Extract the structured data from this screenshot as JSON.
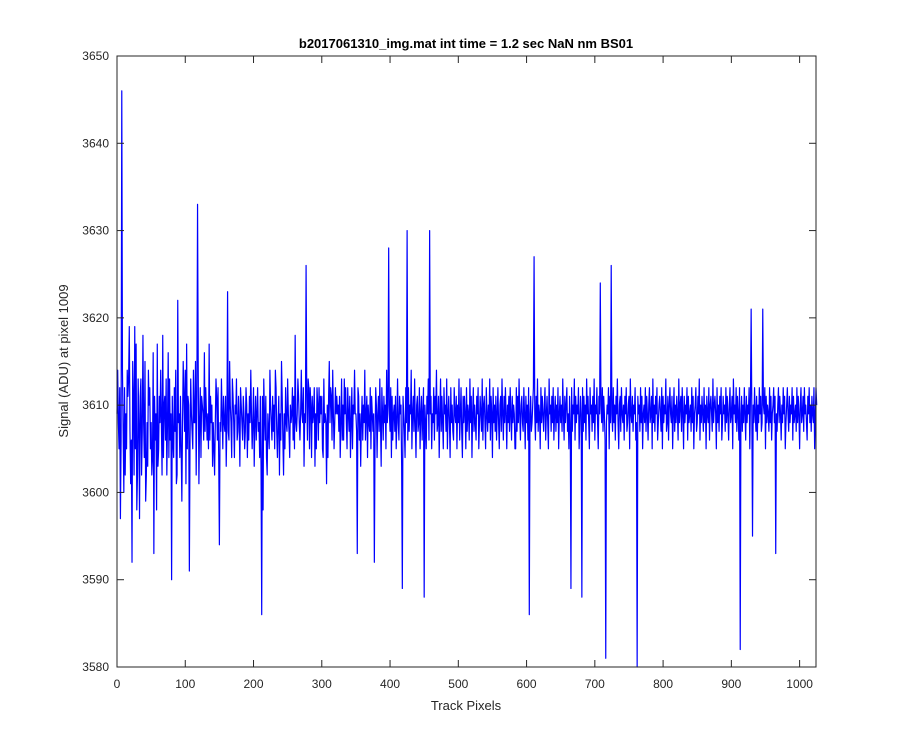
{
  "chart_data": {
    "type": "line",
    "title": "b2017061310_img.mat int time = 1.2 sec  NaN nm BS01",
    "xlabel": "Track Pixels",
    "ylabel": "Signal (ADU) at pixel 1009",
    "xlim": [
      0,
      1024
    ],
    "ylim": [
      3580,
      3650
    ],
    "xticks": [
      0,
      100,
      200,
      300,
      400,
      500,
      600,
      700,
      800,
      900,
      1000
    ],
    "yticks": [
      3580,
      3590,
      3600,
      3610,
      3620,
      3630,
      3640,
      3650
    ],
    "grid": false,
    "legend": "none",
    "series_color": "#0000ff",
    "features": {
      "spikes": [
        [
          5,
          3597
        ],
        [
          7,
          3646
        ],
        [
          10,
          3600
        ],
        [
          22,
          3592
        ],
        [
          80,
          3590
        ],
        [
          118,
          3633
        ],
        [
          150,
          3594
        ],
        [
          163,
          3623
        ],
        [
          215,
          3586
        ],
        [
          278,
          3626
        ],
        [
          368,
          3593
        ],
        [
          389,
          3592
        ],
        [
          410,
          3628
        ],
        [
          430,
          3589
        ],
        [
          436,
          3630
        ],
        [
          466,
          3588
        ],
        [
          474,
          3630
        ],
        [
          594,
          3605
        ],
        [
          610,
          3586
        ],
        [
          618,
          3627
        ],
        [
          675,
          3589
        ],
        [
          690,
          3588
        ],
        [
          720,
          3624
        ],
        [
          728,
          3581
        ],
        [
          735,
          3626
        ],
        [
          772,
          3580
        ],
        [
          850,
          3595
        ],
        [
          902,
          3582
        ],
        [
          920,
          3621
        ],
        [
          925,
          3595
        ],
        [
          940,
          3621
        ],
        [
          965,
          3593
        ],
        [
          1010,
          3612
        ]
      ],
      "range": [
        3580,
        3646
      ]
    },
    "series": [
      {
        "x_start": 0,
        "x_step": 1,
        "values": [
          3609,
          3614,
          3608,
          3605,
          3612,
          3597,
          3606,
          3646,
          3614,
          3607,
          3600,
          3612,
          3602,
          3609,
          3605,
          3614,
          3611,
          3613,
          3619,
          3607,
          3601,
          3606,
          3592,
          3615,
          3611,
          3602,
          3619,
          3605,
          3617,
          3598,
          3602,
          3613,
          3608,
          3597,
          3611,
          3613,
          3602,
          3607,
          3618,
          3608,
          3604,
          3615,
          3599,
          3602,
          3608,
          3603,
          3614,
          3610,
          3612,
          3605,
          3608,
          3602,
          3604,
          3616,
          3593,
          3611,
          3606,
          3609,
          3598,
          3617,
          3603,
          3605,
          3611,
          3608,
          3614,
          3608,
          3602,
          3618,
          3604,
          3610,
          3611,
          3606,
          3613,
          3602,
          3608,
          3616,
          3604,
          3613,
          3606,
          3609,
          3590,
          3611,
          3606,
          3604,
          3612,
          3607,
          3614,
          3601,
          3602,
          3622,
          3608,
          3609,
          3604,
          3611,
          3605,
          3599,
          3608,
          3615,
          3611,
          3607,
          3614,
          3601,
          3617,
          3605,
          3611,
          3610,
          3591,
          3606,
          3613,
          3609,
          3607,
          3605,
          3614,
          3608,
          3608,
          3615,
          3602,
          3611,
          3633,
          3614,
          3601,
          3608,
          3612,
          3604,
          3611,
          3610,
          3609,
          3606,
          3616,
          3607,
          3612,
          3609,
          3606,
          3609,
          3605,
          3617,
          3606,
          3611,
          3608,
          3610,
          3603,
          3608,
          3605,
          3602,
          3608,
          3613,
          3611,
          3606,
          3612,
          3604,
          3594,
          3608,
          3607,
          3613,
          3609,
          3605,
          3611,
          3608,
          3607,
          3611,
          3603,
          3608,
          3623,
          3607,
          3606,
          3615,
          3610,
          3608,
          3604,
          3613,
          3611,
          3608,
          3604,
          3610,
          3609,
          3613,
          3606,
          3607,
          3611,
          3608,
          3603,
          3612,
          3610,
          3608,
          3606,
          3611,
          3609,
          3605,
          3607,
          3612,
          3610,
          3604,
          3609,
          3606,
          3611,
          3608,
          3614,
          3609,
          3605,
          3608,
          3612,
          3603,
          3608,
          3611,
          3606,
          3609,
          3612,
          3607,
          3608,
          3604,
          3611,
          3603,
          3586,
          3611,
          3598,
          3613,
          3609,
          3606,
          3611,
          3604,
          3602,
          3609,
          3607,
          3605,
          3614,
          3610,
          3608,
          3606,
          3611,
          3607,
          3610,
          3605,
          3614,
          3612,
          3607,
          3604,
          3608,
          3611,
          3602,
          3609,
          3606,
          3615,
          3611,
          3606,
          3602,
          3609,
          3605,
          3612,
          3608,
          3607,
          3613,
          3609,
          3607,
          3604,
          3610,
          3608,
          3609,
          3612,
          3606,
          3611,
          3605,
          3618,
          3608,
          3607,
          3609,
          3613,
          3611,
          3608,
          3606,
          3609,
          3614,
          3609,
          3608,
          3612,
          3603,
          3609,
          3608,
          3626,
          3611,
          3606,
          3613,
          3612,
          3605,
          3612,
          3610,
          3604,
          3611,
          3608,
          3609,
          3612,
          3603,
          3609,
          3605,
          3612,
          3610,
          3606,
          3612,
          3608,
          3611,
          3609,
          3611,
          3605,
          3604,
          3613,
          3608,
          3609,
          3608,
          3601,
          3610,
          3604,
          3611,
          3615,
          3608,
          3612,
          3611,
          3606,
          3614,
          3609,
          3605,
          3608,
          3612,
          3609,
          3611,
          3609,
          3610,
          3607,
          3611,
          3604,
          3608,
          3613,
          3606,
          3610,
          3606,
          3613,
          3609,
          3612,
          3608,
          3605,
          3612,
          3609,
          3607,
          3611,
          3604,
          3608,
          3612,
          3605,
          3610,
          3609,
          3614,
          3609,
          3609,
          3607,
          3593,
          3612,
          3611,
          3606,
          3609,
          3603,
          3608,
          3611,
          3606,
          3610,
          3608,
          3614,
          3606,
          3609,
          3611,
          3604,
          3610,
          3608,
          3607,
          3612,
          3605,
          3611,
          3609,
          3607,
          3609,
          3592,
          3606,
          3612,
          3610,
          3604,
          3609,
          3611,
          3607,
          3613,
          3608,
          3603,
          3612,
          3609,
          3606,
          3611,
          3608,
          3610,
          3605,
          3614,
          3608,
          3610,
          3628,
          3609,
          3607,
          3612,
          3604,
          3611,
          3606,
          3609,
          3610,
          3607,
          3611,
          3605,
          3608,
          3613,
          3608,
          3606,
          3611,
          3609,
          3610,
          3603,
          3589,
          3611,
          3609,
          3607,
          3604,
          3612,
          3608,
          3630,
          3606,
          3612,
          3607,
          3610,
          3609,
          3614,
          3605,
          3609,
          3611,
          3607,
          3613,
          3608,
          3604,
          3610,
          3611,
          3607,
          3608,
          3612,
          3605,
          3609,
          3611,
          3606,
          3609,
          3612,
          3588,
          3610,
          3608,
          3605,
          3611,
          3609,
          3613,
          3606,
          3630,
          3609,
          3611,
          3605,
          3609,
          3608,
          3612,
          3606,
          3611,
          3609,
          3614,
          3607,
          3608,
          3611,
          3604,
          3609,
          3613,
          3607,
          3611,
          3608,
          3605,
          3612,
          3609,
          3610,
          3607,
          3613,
          3605,
          3609,
          3611,
          3608,
          3604,
          3612,
          3608,
          3610,
          3607,
          3606,
          3612,
          3609,
          3608,
          3611,
          3605,
          3610,
          3608,
          3613,
          3606,
          3609,
          3612,
          3607,
          3604,
          3611,
          3608,
          3611,
          3609,
          3605,
          3612,
          3607,
          3610,
          3609,
          3606,
          3613,
          3608,
          3611,
          3604,
          3609,
          3612,
          3607,
          3610,
          3608,
          3606,
          3611,
          3609,
          3612,
          3605,
          3608,
          3611,
          3609,
          3607,
          3613,
          3606,
          3610,
          3611,
          3608,
          3605,
          3612,
          3609,
          3607,
          3610,
          3608,
          3613,
          3606,
          3611,
          3609,
          3604,
          3612,
          3608,
          3610,
          3607,
          3611,
          3606,
          3609,
          3612,
          3608,
          3605,
          3610,
          3611,
          3607,
          3613,
          3609,
          3606,
          3611,
          3608,
          3612,
          3609,
          3605,
          3610,
          3608,
          3611,
          3607,
          3612,
          3609,
          3606,
          3611,
          3608,
          3610,
          3609,
          3605,
          3605,
          3612,
          3607,
          3611,
          3608,
          3613,
          3609,
          3606,
          3610,
          3611,
          3608,
          3607,
          3612,
          3609,
          3605,
          3611,
          3608,
          3610,
          3606,
          3612,
          3586,
          3609,
          3611,
          3607,
          3608,
          3610,
          3612,
          3627,
          3609,
          3606,
          3611,
          3608,
          3613,
          3607,
          3610,
          3609,
          3605,
          3612,
          3608,
          3611,
          3609,
          3607,
          3610,
          3612,
          3606,
          3609,
          3611,
          3608,
          3605,
          3613,
          3609,
          3610,
          3607,
          3611,
          3608,
          3612,
          3606,
          3609,
          3611,
          3607,
          3610,
          3608,
          3612,
          3605,
          3609,
          3611,
          3608,
          3610,
          3607,
          3613,
          3609,
          3606,
          3611,
          3608,
          3610,
          3612,
          3607,
          3609,
          3605,
          3611,
          3608,
          3589,
          3612,
          3607,
          3610,
          3609,
          3613,
          3606,
          3611,
          3608,
          3610,
          3609,
          3612,
          3605,
          3608,
          3611,
          3609,
          3588,
          3612,
          3607,
          3611,
          3608,
          3610,
          3606,
          3613,
          3609,
          3611,
          3608,
          3605,
          3612,
          3609,
          3610,
          3607,
          3611,
          3608,
          3613,
          3606,
          3610,
          3609,
          3612,
          3608,
          3605,
          3611,
          3609,
          3624,
          3610,
          3608,
          3612,
          3607,
          3611,
          3609,
          3606,
          3581,
          3608,
          3610,
          3609,
          3612,
          3605,
          3611,
          3608,
          3626,
          3609,
          3607,
          3612,
          3608,
          3610,
          3606,
          3611,
          3609,
          3613,
          3608,
          3605,
          3610,
          3611,
          3607,
          3612,
          3609,
          3608,
          3610,
          3606,
          3611,
          3609,
          3612,
          3607,
          3608,
          3610,
          3611,
          3605,
          3613,
          3609,
          3608,
          3611,
          3607,
          3610,
          3609,
          3612,
          3606,
          3608,
          3580,
          3611,
          3609,
          3610,
          3607,
          3612,
          3608,
          3611,
          3605,
          3609,
          3610,
          3608,
          3612,
          3607,
          3611,
          3609,
          3606,
          3610,
          3612,
          3608,
          3609,
          3611,
          3605,
          3613,
          3608,
          3610,
          3607,
          3611,
          3609,
          3612,
          3606,
          3608,
          3610,
          3611,
          3609,
          3607,
          3612,
          3605,
          3611,
          3608,
          3610,
          3609,
          3613,
          3607,
          3608,
          3611,
          3606,
          3610,
          3612,
          3609,
          3608,
          3611,
          3605,
          3609,
          3612,
          3607,
          3610,
          3608,
          3611,
          3609,
          3606,
          3613,
          3608,
          3610,
          3611,
          3607,
          3612,
          3609,
          3605,
          3611,
          3608,
          3610,
          3609,
          3612,
          3606,
          3611,
          3608,
          3609,
          3610,
          3607,
          3612,
          3608,
          3611,
          3605,
          3609,
          3610,
          3612,
          3607,
          3608,
          3611,
          3609,
          3613,
          3606,
          3610,
          3608,
          3611,
          3609,
          3607,
          3612,
          3608,
          3610,
          3605,
          3611,
          3609,
          3608,
          3612,
          3606,
          3610,
          3611,
          3609,
          3607,
          3613,
          3608,
          3610,
          3611,
          3609,
          3605,
          3612,
          3608,
          3610,
          3607,
          3611,
          3609,
          3612,
          3606,
          3608,
          3611,
          3609,
          3610,
          3607,
          3612,
          3608,
          3611,
          3609,
          3606,
          3610,
          3612,
          3608,
          3609,
          3611,
          3605,
          3613,
          3609,
          3610,
          3608,
          3612,
          3607,
          3611,
          3609,
          3606,
          3612,
          3582,
          3609,
          3611,
          3607,
          3610,
          3608,
          3612,
          3609,
          3606,
          3611,
          3608,
          3610,
          3609,
          3612,
          3605,
          3611,
          3621,
          3609,
          3595,
          3610,
          3608,
          3612,
          3609,
          3607,
          3611,
          3606,
          3610,
          3608,
          3612,
          3609,
          3611,
          3607,
          3608,
          3621,
          3610,
          3609,
          3612,
          3605,
          3611,
          3608,
          3610,
          3609,
          3607,
          3612,
          3608,
          3611,
          3606,
          3609,
          3610,
          3612,
          3608,
          3611,
          3593,
          3609,
          3607,
          3610,
          3612,
          3608,
          3611,
          3609,
          3606,
          3610,
          3608,
          3612,
          3609,
          3611,
          3605,
          3608,
          3610,
          3612,
          3609,
          3607,
          3611,
          3608,
          3610,
          3609,
          3612,
          3606,
          3611,
          3608,
          3609,
          3610,
          3607,
          3612,
          3608,
          3611,
          3609,
          3605,
          3610,
          3612,
          3608,
          3609,
          3611,
          3607,
          3612,
          3609,
          3610,
          3608,
          3606,
          3611,
          3609,
          3612,
          3608,
          3610,
          3607,
          3611,
          3609,
          3608,
          3612,
          3605,
          3609,
          3612,
          3610
        ]
      }
    ]
  }
}
